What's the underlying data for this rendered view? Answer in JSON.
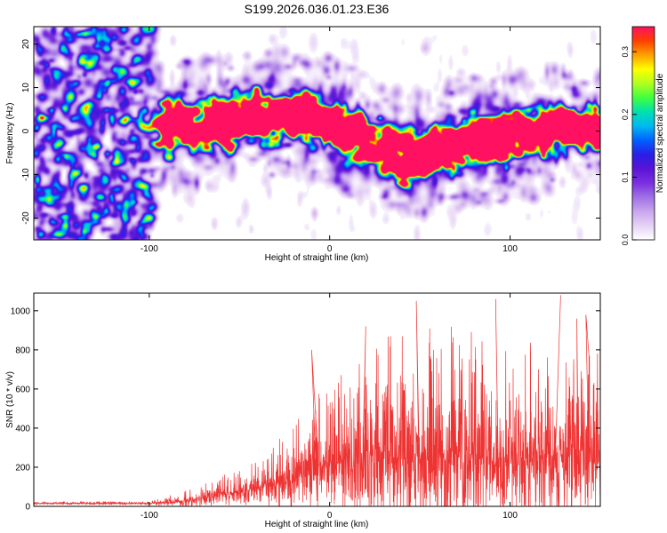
{
  "figure_title": "S199.2026.036.01.23.E36",
  "colors": {
    "snr_line": "#ee3333",
    "colormap": [
      "#ffffff",
      "#e6d2f5",
      "#c9a6ee",
      "#a070e6",
      "#7a2fe0",
      "#5a14d6",
      "#2a1ee6",
      "#0060ff",
      "#00b8f0",
      "#00e0b0",
      "#40ff40",
      "#b0ff20",
      "#ffff00",
      "#ffa000",
      "#ff4000",
      "#ff1060"
    ]
  },
  "chart_data": [
    {
      "id": "spectrogram",
      "type": "heatmap",
      "title": "S199.2026.036.01.23.E36",
      "xlabel": "Height of straight line (km)",
      "ylabel": "Frequency (Hz)",
      "xlim": [
        -164,
        150
      ],
      "ylim": [
        -25,
        24
      ],
      "xticks": [
        -100,
        0,
        100
      ],
      "xtick_labels": [
        "-100",
        "0",
        "100"
      ],
      "yticks": [
        -20,
        -10,
        0,
        10,
        20
      ],
      "ytick_labels": [
        "-20",
        "-10",
        "0",
        "10",
        "20"
      ],
      "colorbar": {
        "label": "Normalized spectral amplitude",
        "range": [
          0,
          0.34
        ],
        "ticks": [
          0.0,
          0.1,
          0.2,
          0.3
        ],
        "tick_labels": [
          "0.0",
          "0.1",
          "0.2",
          "0.3"
        ]
      },
      "signal_band": {
        "x_start": -97,
        "center_hz": 0,
        "halfwidth_hz": 9,
        "center_profile": [
          [
            -97,
            1
          ],
          [
            -60,
            2
          ],
          [
            -30,
            4
          ],
          [
            0,
            2
          ],
          [
            20,
            -2
          ],
          [
            40,
            -6
          ],
          [
            70,
            -3
          ],
          [
            100,
            -1
          ],
          [
            150,
            1
          ]
        ],
        "peak_amplitude": 0.33,
        "peak_locations": [
          [
            -24,
            7
          ],
          [
            4,
            3
          ],
          [
            -74,
            1
          ],
          [
            24,
            -6
          ]
        ]
      },
      "noise_region_x": [
        -164,
        -97
      ],
      "noise_level": 0.06
    },
    {
      "id": "snr",
      "type": "line",
      "xlabel": "Height of straight line (km)",
      "ylabel": "SNR (10 * v/v)",
      "xlim": [
        -164,
        150
      ],
      "ylim": [
        0,
        1090
      ],
      "xticks": [
        -100,
        0,
        100
      ],
      "xtick_labels": [
        "-100",
        "0",
        "100"
      ],
      "yticks": [
        0,
        200,
        400,
        600,
        800,
        1000
      ],
      "ytick_labels": [
        "0",
        "200",
        "400",
        "600",
        "800",
        "1000"
      ],
      "envelope": {
        "x": [
          -164,
          -100,
          -80,
          -60,
          -40,
          -20,
          -10,
          0,
          10,
          20,
          40,
          60,
          100,
          130,
          150
        ],
        "base": [
          15,
          15,
          25,
          60,
          90,
          140,
          180,
          220,
          240,
          250,
          250,
          250,
          240,
          230,
          230
        ],
        "amp": [
          8,
          8,
          40,
          70,
          100,
          200,
          280,
          330,
          380,
          420,
          460,
          480,
          480,
          460,
          440
        ]
      },
      "annotated_peaks": [
        [
          -10,
          800
        ],
        [
          20,
          920
        ],
        [
          48,
          1050
        ],
        [
          92,
          1060
        ],
        [
          128,
          1080
        ],
        [
          137,
          960
        ],
        [
          142,
          980
        ]
      ]
    }
  ]
}
